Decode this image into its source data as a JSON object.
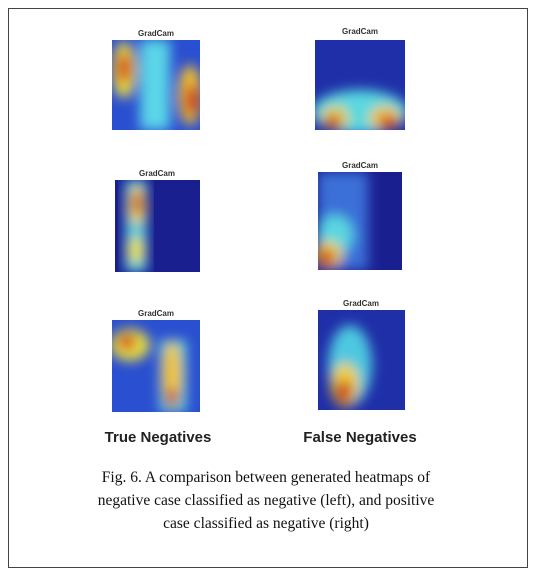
{
  "panels": [
    {
      "label": "GradCam"
    },
    {
      "label": "GradCam"
    },
    {
      "label": "GradCam"
    },
    {
      "label": "GradCam"
    },
    {
      "label": "GradCam"
    },
    {
      "label": "GradCam"
    }
  ],
  "columns": [
    "True Negatives",
    "False Negatives"
  ],
  "caption": [
    "Fig. 6. A comparison between generated heatmaps of",
    "negative case classified as negative (left), and positive",
    "case classified as negative (right)"
  ]
}
